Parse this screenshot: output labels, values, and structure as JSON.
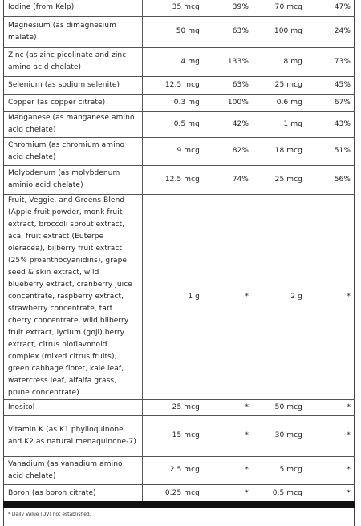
{
  "rows": [
    {
      "name": "Iodine (from Kelp)",
      "amt1": "35 mcg",
      "dv1": "39%",
      "amt2": "70 mcg",
      "dv2": "47%"
    },
    {
      "name": "Magnesium (as dimagnesium malate)",
      "amt1": "50 mg",
      "dv1": "63%",
      "amt2": "100 mg",
      "dv2": "24%"
    },
    {
      "name": "Zinc (as zinc picolinate and zinc amino acid chelate)",
      "amt1": "4 mg",
      "dv1": "133%",
      "amt2": "8 mg",
      "dv2": "73%"
    },
    {
      "name": "Selenium (as sodium selenite)",
      "amt1": "12.5 mcg",
      "dv1": "63%",
      "amt2": "25 mcg",
      "dv2": "45%"
    },
    {
      "name": "Copper (as copper citrate)",
      "amt1": "0.3 mg",
      "dv1": "100%",
      "amt2": "0.6 mg",
      "dv2": "67%"
    },
    {
      "name": "Manganese (as manganese amino acid chelate)",
      "amt1": "0.5 mg",
      "dv1": "42%",
      "amt2": "1 mg",
      "dv2": "43%"
    },
    {
      "name": "Chromium (as chromium amino acid chelate)",
      "amt1": "9 mcg",
      "dv1": "82%",
      "amt2": "18 mcg",
      "dv2": "51%"
    },
    {
      "name": "Molybdenum (as molybdenum aminio acid chelate)",
      "amt1": "12.5 mcg",
      "dv1": "74%",
      "amt2": "25 mcg",
      "dv2": "56%"
    },
    {
      "name": "Fruit, Veggie, and Greens Blend (Apple fruit powder, monk fruit extract, broccoli sprout extract, acai fruit extract (Euterpe oleracea), bilberry fruit extract (25% proanthocyanidins), grape seed & skin extract, wild blueberry extract, cranberry juice concentrate, raspberry extract, strawberry concentrate, tart cherry concentrate, wild bilberry fruit extract, lycium (goji) berry extract, citrus bioflavonoid complex (mixed citrus fruits), green cabbage floret, kale leaf, watercress leaf, alfalfa grass, prune concentrate)",
      "amt1": "1 g",
      "dv1": "*",
      "amt2": "2 g",
      "dv2": "*"
    },
    {
      "name": "Inositol",
      "amt1": "25 mcg",
      "dv1": "*",
      "amt2": "50 mcg",
      "dv2": "*"
    },
    {
      "name": "Vitamin K (as K1 phylloquinone and K2 as natural menaquinone-7)",
      "amt1": "15 mcg",
      "dv1": "*",
      "amt2": "30 mcg",
      "dv2": "*"
    },
    {
      "name": "Vanadium (as vanadium amino acid chelate)",
      "amt1": "2.5 mcg",
      "dv1": "*",
      "amt2": "5 mcg",
      "dv2": "*"
    },
    {
      "name": "Boron (as boron citrate)",
      "amt1": "0.25 mcg",
      "dv1": "*",
      "amt2": "0.5 mcg",
      "dv2": "*"
    }
  ],
  "footnote": "* Daily Value (DV) not established."
}
